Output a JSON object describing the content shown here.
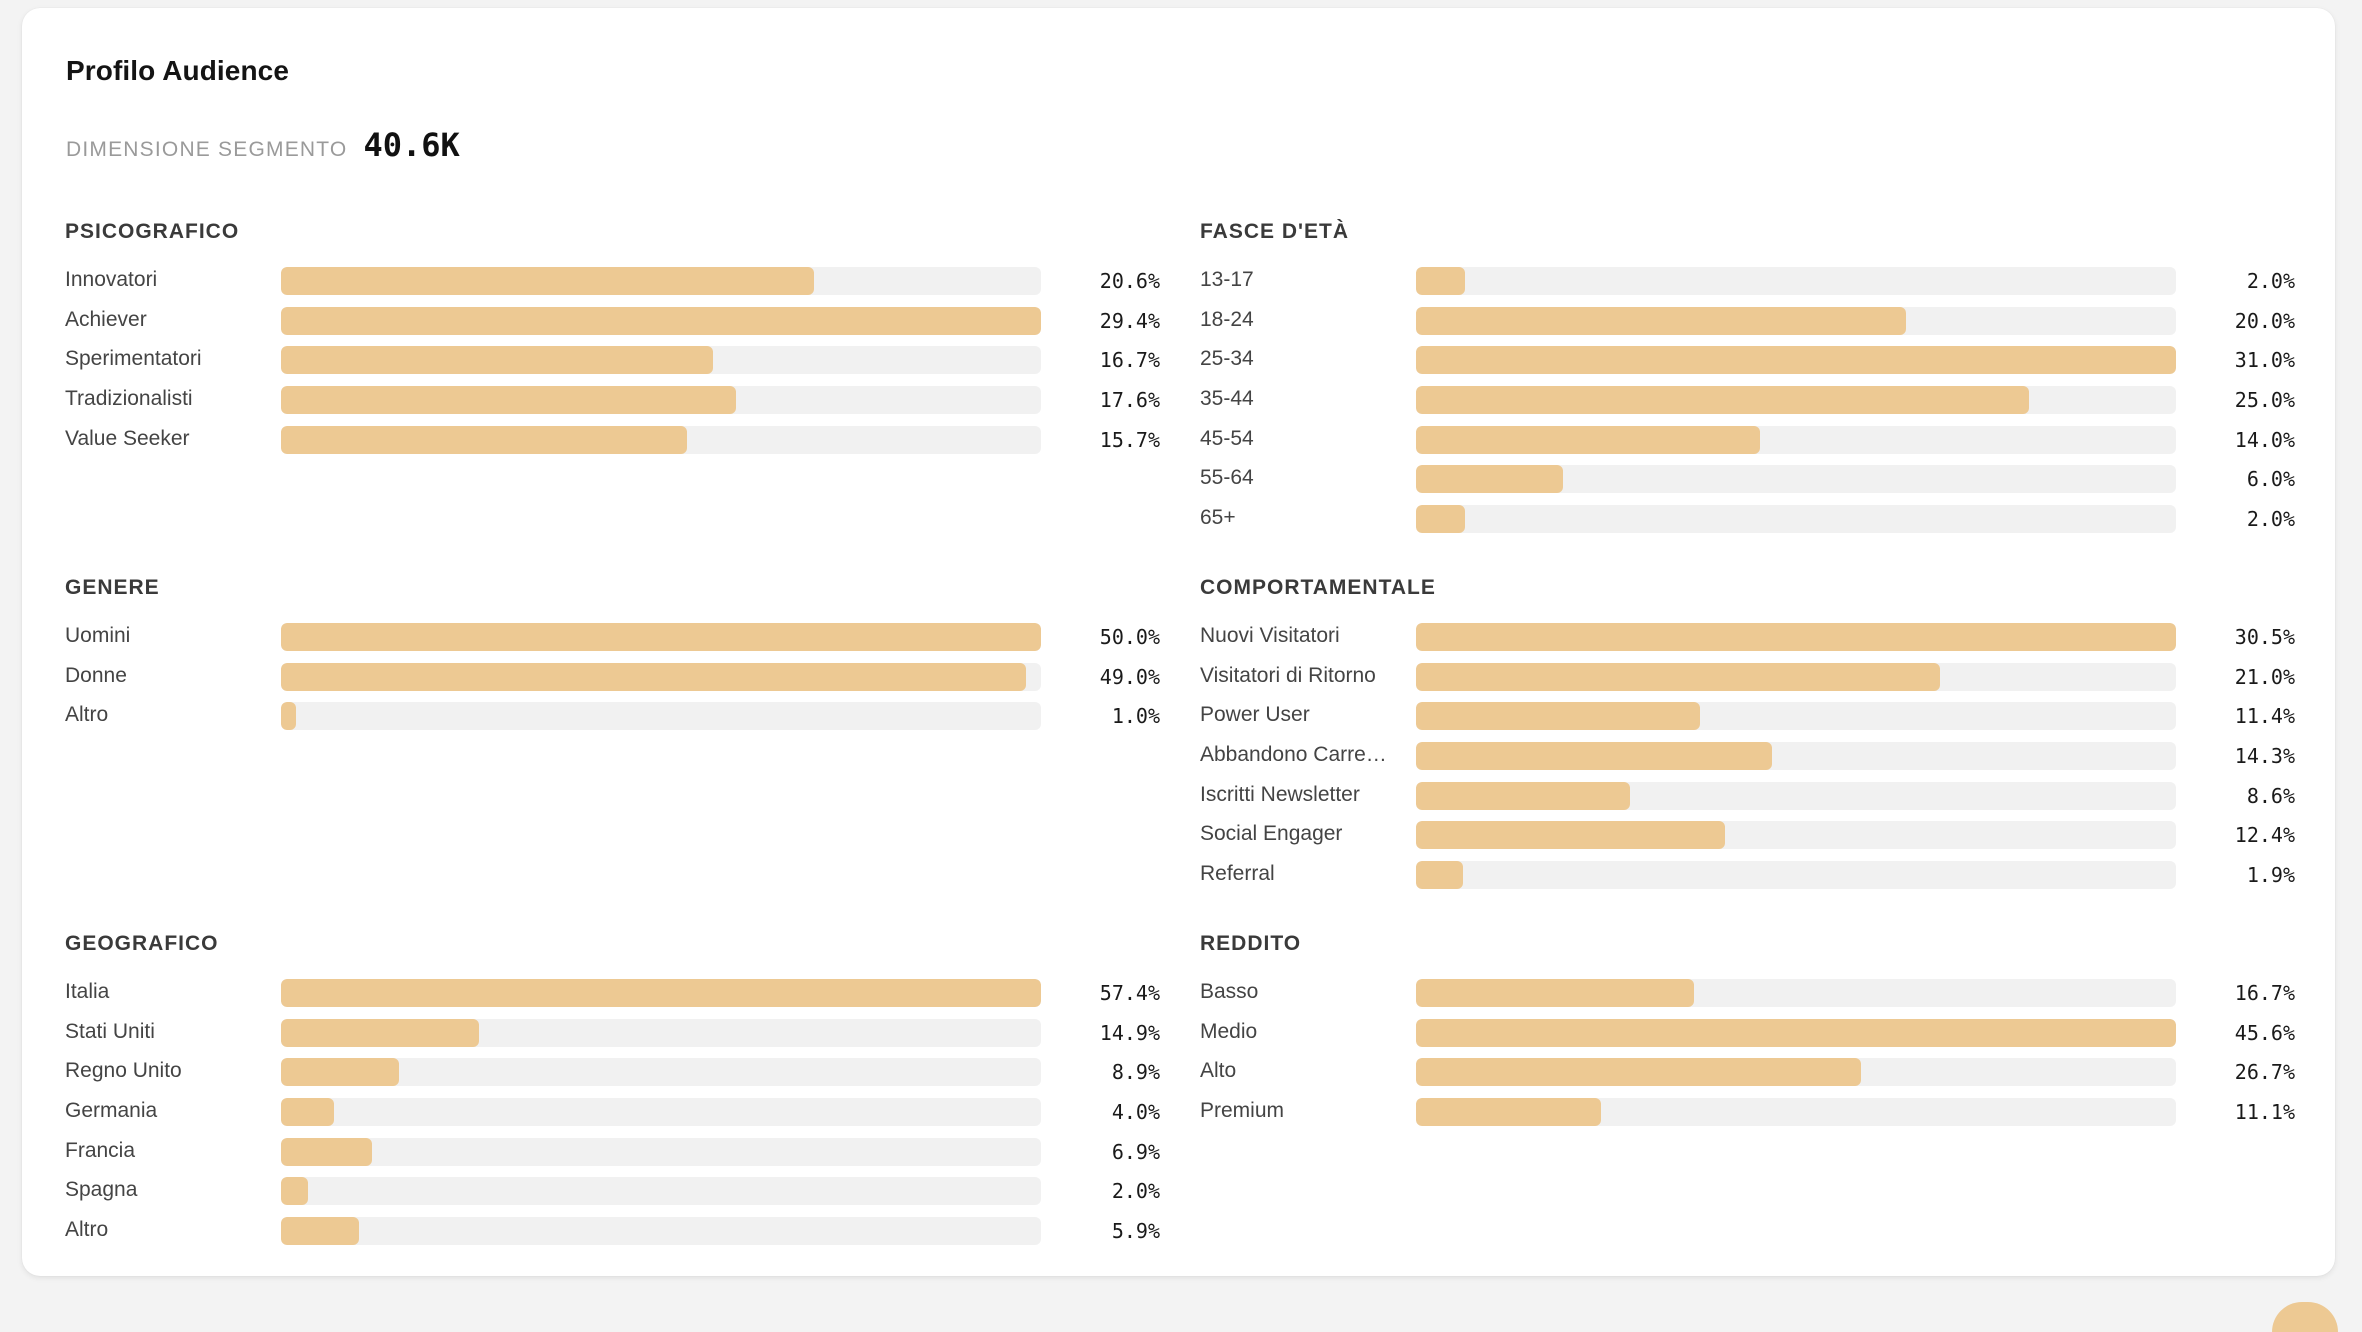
{
  "header": {
    "title": "Profilo Audience",
    "segment_label": "DIMENSIONE SEGMENTO",
    "segment_value": "40.6K"
  },
  "colors": {
    "bar_fill": "#edc993",
    "bar_track": "#f1f1f1"
  },
  "sections": [
    {
      "id": "psicografico",
      "title": "PSICOGRAFICO",
      "rows": [
        {
          "label": "Innovatori",
          "value": "20.6%",
          "fill": 0.701
        },
        {
          "label": "Achiever",
          "value": "29.4%",
          "fill": 1.0
        },
        {
          "label": "Sperimentatori",
          "value": "16.7%",
          "fill": 0.568
        },
        {
          "label": "Tradizionalisti",
          "value": "17.6%",
          "fill": 0.599
        },
        {
          "label": "Value Seeker",
          "value": "15.7%",
          "fill": 0.534
        }
      ]
    },
    {
      "id": "fasce-eta",
      "title": "FASCE D'ETÀ",
      "rows": [
        {
          "label": "13-17",
          "value": "2.0%",
          "fill": 0.065
        },
        {
          "label": "18-24",
          "value": "20.0%",
          "fill": 0.645
        },
        {
          "label": "25-34",
          "value": "31.0%",
          "fill": 1.0
        },
        {
          "label": "35-44",
          "value": "25.0%",
          "fill": 0.806
        },
        {
          "label": "45-54",
          "value": "14.0%",
          "fill": 0.452
        },
        {
          "label": "55-64",
          "value": "6.0%",
          "fill": 0.194
        },
        {
          "label": "65+",
          "value": "2.0%",
          "fill": 0.065
        }
      ]
    },
    {
      "id": "genere",
      "title": "GENERE",
      "rows": [
        {
          "label": "Uomini",
          "value": "50.0%",
          "fill": 1.0
        },
        {
          "label": "Donne",
          "value": "49.0%",
          "fill": 0.98
        },
        {
          "label": "Altro",
          "value": "1.0%",
          "fill": 0.02
        }
      ]
    },
    {
      "id": "comportamentale",
      "title": "COMPORTAMENTALE",
      "rows": [
        {
          "label": "Nuovi Visitatori",
          "value": "30.5%",
          "fill": 1.0
        },
        {
          "label": "Visitatori di Ritorno",
          "value": "21.0%",
          "fill": 0.689
        },
        {
          "label": "Power User",
          "value": "11.4%",
          "fill": 0.374
        },
        {
          "label": "Abbandono Carre…",
          "value": "14.3%",
          "fill": 0.469
        },
        {
          "label": "Iscritti Newsletter",
          "value": "8.6%",
          "fill": 0.282
        },
        {
          "label": "Social Engager",
          "value": "12.4%",
          "fill": 0.407
        },
        {
          "label": "Referral",
          "value": "1.9%",
          "fill": 0.062
        }
      ]
    },
    {
      "id": "geografico",
      "title": "GEOGRAFICO",
      "rows": [
        {
          "label": "Italia",
          "value": "57.4%",
          "fill": 1.0
        },
        {
          "label": "Stati Uniti",
          "value": "14.9%",
          "fill": 0.26
        },
        {
          "label": "Regno Unito",
          "value": "8.9%",
          "fill": 0.155
        },
        {
          "label": "Germania",
          "value": "4.0%",
          "fill": 0.07
        },
        {
          "label": "Francia",
          "value": "6.9%",
          "fill": 0.12
        },
        {
          "label": "Spagna",
          "value": "2.0%",
          "fill": 0.035
        },
        {
          "label": "Altro",
          "value": "5.9%",
          "fill": 0.103
        }
      ]
    },
    {
      "id": "reddito",
      "title": "REDDITO",
      "rows": [
        {
          "label": "Basso",
          "value": "16.7%",
          "fill": 0.366
        },
        {
          "label": "Medio",
          "value": "45.6%",
          "fill": 1.0
        },
        {
          "label": "Alto",
          "value": "26.7%",
          "fill": 0.586
        },
        {
          "label": "Premium",
          "value": "11.1%",
          "fill": 0.243
        }
      ]
    }
  ]
}
